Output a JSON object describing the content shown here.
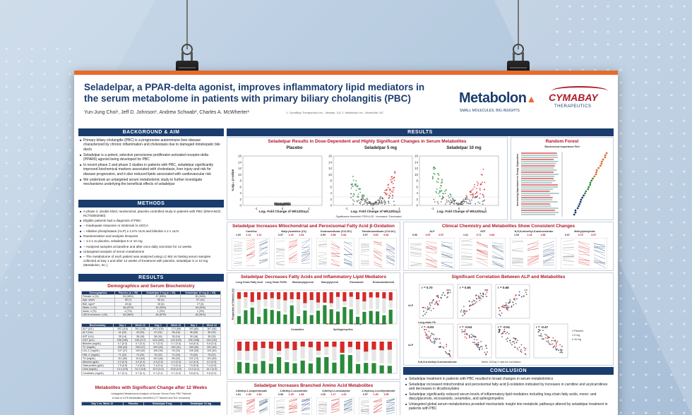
{
  "poster": {
    "title": "Seladelpar, a PPAR-delta agonist, improves inflammatory lipid mediators in the serum metabolome in patients with primary biliary cholangitis (PBC)",
    "authors": "Yun-Jung Choi¹, Jeff D. Johnson¹, Andrew Schwab², Charles A. McWherter¹",
    "affiliations": "1. CymaBay Therapeutics Inc., Newark, CA; 2. Metabolon Inc., Morrisville, NC",
    "logo_metabolon": "Metabolon",
    "logo_metabolon_tagline": "SMALL MOLECULES. BIG INSIGHTS",
    "logo_cymabay": "CYMABAY",
    "logo_cymabay_sub": "THERAPEUTICS"
  },
  "sections": {
    "background": "BACKGROUND & AIM",
    "methods": "METHODS",
    "results_left": "RESULTS",
    "results_main": "RESULTS",
    "conclusion": "CONCLUSION"
  },
  "background_items": [
    "Primary biliary cholangitis (PBC) is a progressive autoimmune liver disease characterized by chronic inflammation and cholestasis due to damaged intrahepatic bile ducts",
    "Seladelpar is a potent, selective peroxisome proliferator-activated receptor-delta (PPARδ) agonist being developed for PBC",
    "In recent phase 2 and phase 3 studies in patients with PBC, seladelpar significantly improved biochemical markers associated with cholestasis, liver injury and risk for disease progression, and it also reduced lipids associated with cardiovascular risk",
    "We undertook an untargeted serum metabolomic study to further investigate mechanisms underlying the beneficial effects of seladelpar"
  ],
  "methods_items": [
    "A phase 2, double blind, randomized, placebo-controlled study in patients with PBC (ENHANCE; NCT03602560)",
    "Eligible patients had a diagnosis of PBC:",
    "– Inadequate response or intolerant to UDCA",
    "– Alkaline phosphatase (ALP) ≥ 1.67x ULN and bilirubin ≤ 2 x ULN",
    "Randomization and analysis timepoint",
    "– 1:1:1 to placebo, seladelpar 5 or 10 mg",
    "– Analyzed samples at baseline and after once daily oral dose for 12 weeks",
    "Untargeted analysis of serum metabolome",
    "– The metabolome of each patient was analyzed using LC-MS on fasting serum samples collected at Day 1 and after 12 weeks of treatment with placebo, seladelpar 5 or 10 mg (Metabolon, Inc.)"
  ],
  "demo": {
    "title": "Demographics and Serum Biochemistry",
    "headers": [
      "Demographics",
      "Placebo (n = 55)",
      "Seladelpar 5 mg (n = 53)",
      "Seladelpar 10 mg (n = 53)"
    ],
    "rows": [
      [
        "Female, n (%)",
        "54 (98%)",
        "47 (89%)",
        "50 (94%)"
      ],
      [
        "Age, years",
        "56 (7)",
        "56 (9)",
        "57 (10)"
      ],
      [
        "BMI, kg/m²",
        "28 (6)",
        "28 (6)",
        "27 (6)"
      ],
      [
        "White, n (%)",
        "48 (87%)",
        "49 (92%)",
        "49 (92%)"
      ],
      [
        "Asian, n (%)",
        "4 (7%)",
        "1 (2%)",
        "1 (2%)"
      ],
      [
        "UDCA received, n (%)",
        "54 (98%)",
        "46 (87%)",
        "48 (91%)"
      ]
    ]
  },
  "biochem": {
    "headers": [
      "Biochemistry",
      "Day 1",
      "Week 12",
      "Day 1",
      "Week 12",
      "Day 1",
      "Week 12"
    ],
    "rows": [
      [
        "ALP (U/L)",
        "292 (118)",
        "281 (116)",
        "292 (105)",
        "173 (58)",
        "293 (80)",
        "167 (56)"
      ],
      [
        "ALT (U/L)",
        "41 (22)",
        "43 (23)",
        "47 (24)",
        "35 (16)",
        "45 (25)",
        "36 (19)"
      ],
      [
        "AST (U/L)",
        "35 (14)",
        "38 (18)",
        "38 (16)",
        "35 (16)",
        "39 (16)",
        "36 (15)"
      ],
      [
        "GGT (U/L)",
        "236 (192)",
        "245 (217)",
        "224 (183)",
        "143 (115)",
        "230 (198)",
        "134 (111)"
      ],
      [
        "Bilirubin (mg/dL)",
        "0.7 (0.3)",
        "0.7 (0.3)",
        "0.7 (0.3)",
        "0.7 (0.3)",
        "0.8 (0.3)",
        "0.8 (0.3)"
      ],
      [
        "TC (mg/dL)",
        "205 (43)",
        "209 (47)",
        "203 (45)",
        "190 (41)",
        "200 (40)",
        "201 (49)"
      ],
      [
        "LDL-C (mg/dL)",
        "107 (37)",
        "109 (40)",
        "106 (39)",
        "93 (33)",
        "105 (35)",
        "103 (40)"
      ],
      [
        "HDL-C (mg/dL)",
        "71 (22)",
        "72 (23)",
        "70 (22)",
        "72 (23)",
        "70 (22)",
        "75 (22)"
      ],
      [
        "TG (mg/dL)",
        "111 (55)",
        "114 (64)",
        "101 (46)",
        "89 (42)",
        "122 (72)",
        "101 (53)"
      ],
      [
        "Albumin (g/dL)",
        "4.3 (0.3)",
        "4.2 (0.3)",
        "4.3 (0.3)",
        "4.2 (0.3)",
        "4.2 (0.3)",
        "4.2 (0.3)"
      ],
      [
        "Total protein (g/dL)",
        "7.5 (0.5)",
        "7.4 (0.5)",
        "7.4 (0.4)",
        "7.3 (0.4)",
        "7.5 (0.5)",
        "7.4 (0.5)"
      ],
      [
        "Urea (mg/dL)",
        "13.4 (3.8)",
        "14.1 (3.8)",
        "13.3 (4.0)",
        "13.8 (4.0)",
        "14.3 (4.1)",
        "14.7 (4.3)"
      ],
      [
        "Creatinine (mg/dL)",
        "0.7 (0.1)",
        "0.7 (0.1)",
        "0.7 (0.1)",
        "0.7 (0.2)",
        "0.8 (0.2)",
        "0.8 (0.2)"
      ]
    ]
  },
  "sig_metabolites": {
    "title": "Metabolites with Significant Change after 12 Weeks",
    "subtitle": "Untargeted Metabolomic Analysis of Human Serum From PBC Patients",
    "note": "A total of 1078 Metabolites Identified (777 Named and 301 Unnamed)",
    "headers": [
      "Day 1 vs. Week 12",
      "Placebo",
      "Seladelpar 5 mg",
      "Seladelpar 10 mg"
    ]
  },
  "volcano": {
    "title": "Seladelpar Results in Dose-Dependent and Highly Significant Changes in Serum Metabolites",
    "ylabel": "-Log₁₀ p-value",
    "xlabel": "Log₂ Fold Change of Wk12/Day1",
    "note": "Significance threshold: FDR<0.05 · Increased / Decreased",
    "panels": [
      {
        "label": "Placebo"
      },
      {
        "label": "Seladelpar 5 mg"
      },
      {
        "label": "Seladelpar 10 mg"
      }
    ],
    "yticks": [
      "0",
      "2",
      "4",
      "6",
      "8",
      "10",
      "12",
      "14",
      "16"
    ],
    "xticks": [
      "-1",
      "0",
      "1"
    ]
  },
  "random_forest": {
    "title": "Random Forest",
    "subtitle": "Biochemical Importance Plot",
    "ylabel": "Increasing Importance to Group Separation"
  },
  "fatty_acid": {
    "title": "Seladelpar Increases Mitochondrial and Peroxisomal Fatty Acid β-Oxidation",
    "panels": [
      {
        "label": "Carnitine",
        "vals": [
          "1.00",
          "1.11",
          "1.22"
        ]
      },
      {
        "label": "Butyrylcarnitine (C4)",
        "vals": [
          "0.97",
          "1.20",
          "1.34"
        ]
      },
      {
        "label": "Dodecanedioate (C12-DC)",
        "vals": [
          "0.99",
          "0.56",
          "0.54"
        ]
      },
      {
        "label": "Tetradecanedioate (C14-DC)",
        "vals": [
          "0.97",
          "0.60",
          "0.54"
        ]
      }
    ]
  },
  "clinical": {
    "title": "Clinical Chemistry and Metabolites Show Consistent Changes",
    "panels": [
      {
        "label": "ALP",
        "vals": [
          "0.96",
          "0.57",
          "0.57"
        ]
      },
      {
        "label": "GGT",
        "vals": [
          "1.01",
          "0.71",
          "0.66"
        ]
      },
      {
        "label": "N,N,N-trimethyl-5-aminovalerate",
        "vals": [
          "1.03",
          "1.41",
          "1.58"
        ]
      },
      {
        "label": "Methylphosphate",
        "vals": [
          "0.97",
          "0.75",
          "0.67"
        ]
      }
    ]
  },
  "inflammatory": {
    "title": "Seladelpar Decreases Fatty Acids and Inflammatory Lipid Mediators",
    "groups": [
      "Long Chain Fatty Acid",
      "Long Chain PUFA",
      "Monoacylglycerol",
      "Diacylglycerol",
      "Eicosanoid",
      "Endocannabinoid"
    ],
    "legend": [
      "Increased",
      "No Change",
      "Decreased"
    ],
    "ylabel": "Proportion of Patients (%)",
    "subgroups": [
      "Ceramides",
      "Sphingomyelins"
    ]
  },
  "correlation": {
    "title": "Significant Correlation Between ALP and Metabolites",
    "r_values": [
      "r = 0.70",
      "r = 0.65",
      "r = 0.68",
      "r = -0.63",
      "r = -0.54",
      "r = -0.51",
      "r = -0.47"
    ],
    "legend": [
      "Placebo",
      "5 mg",
      "10 mg"
    ],
    "ylabel": "ALP",
    "xlabels": [
      "Long-chain FA",
      "N,N,N-trimethyl-5-aminovalerate"
    ],
    "footnote": "Week 12/Day 1 ratio for correlation"
  },
  "amino": {
    "title": "Seladelpar Increases Branched Amino Acid Metabolites",
    "panels": [
      {
        "label": "4-Methyl-2-oxopentanoate",
        "vals": [
          "1.01",
          "1.35",
          "1.54"
        ]
      },
      {
        "label": "3-Methyl-2-oxovalerate",
        "vals": [
          "0.98",
          "1.25",
          "1.38"
        ]
      },
      {
        "label": "3-Methyl-2-oxobutyrate",
        "vals": [
          "1.00",
          "1.17",
          "1.23"
        ]
      },
      {
        "label": "2-Hydroxy-3-methylvalerate",
        "vals": [
          "0.97",
          "1.45",
          "1.55"
        ]
      }
    ]
  },
  "conclusion_items": [
    "Seladelpar treatment in patients with PBC resulted in broad changes in serum metabolomics",
    "Seladelpar increased mitochondrial and peroxisomal fatty acid β-oxidation indicated by increases in carnitine and acylcarnitines and decreases in dicarboxylates",
    "Seladelpar significantly reduced serum levels of inflammatory lipid mediators including long-chain fatty acids, mono- and diacylglycerols, eicosanoids, ceramides, and sphingomyelins",
    "Untargeted global serum metabolomics provided mechanistic insight into metabolic pathways altered by seladelpar treatment in patients with PBC"
  ],
  "colors": {
    "navy": "#1a3d6e",
    "red": "#b0182a",
    "orange": "#e86a2a",
    "increased": "#d42a2a",
    "decreased": "#2a8a3a"
  }
}
